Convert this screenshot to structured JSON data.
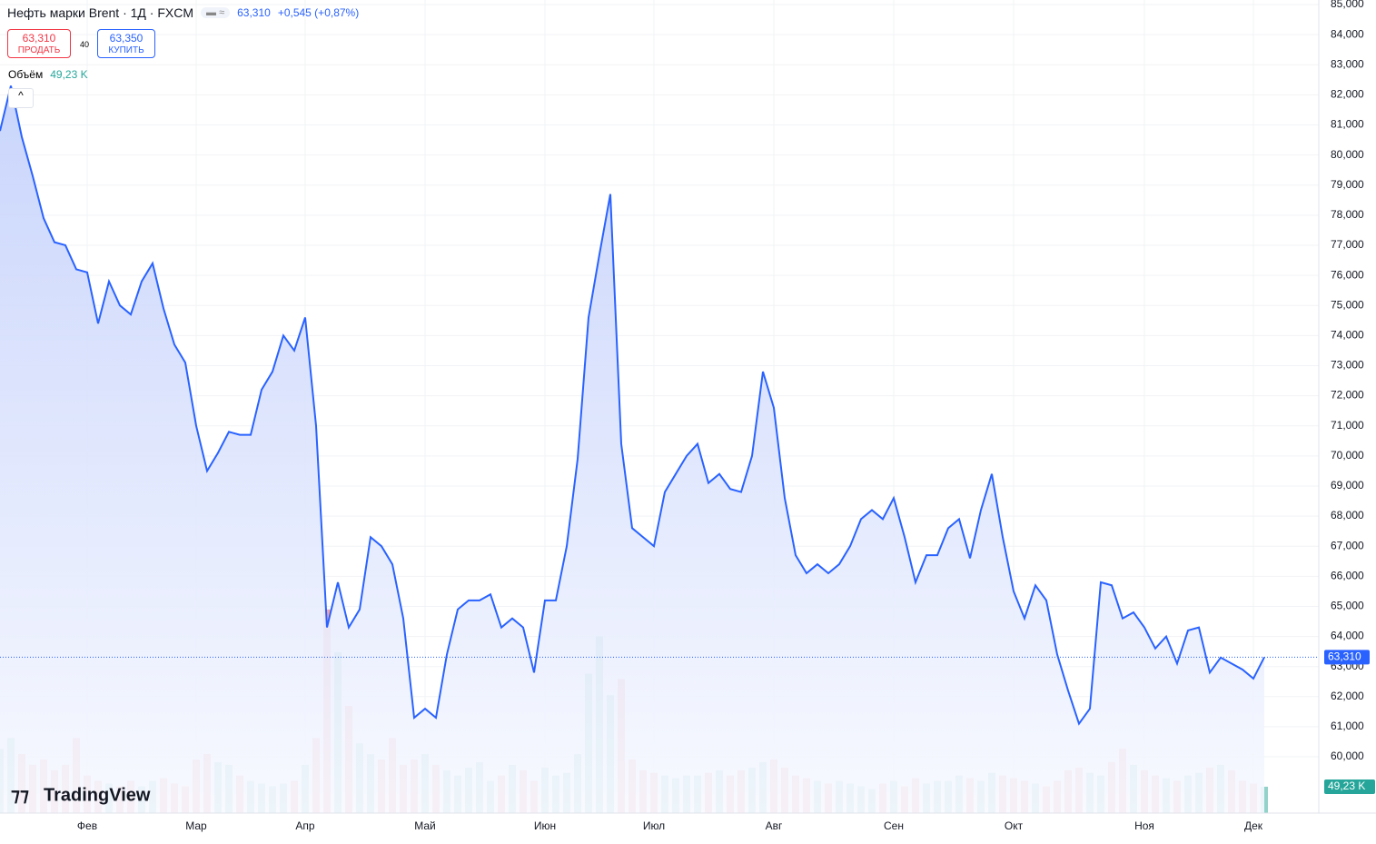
{
  "chart_data": {
    "type": "line",
    "title": "Нефть марки Brent · 1Д · FXCM",
    "last_price": "63,310",
    "change": "+0,545 (+0,87%)",
    "sell_price": "63,310",
    "sell_label": "ПРОДАТЬ",
    "spread": "40",
    "buy_price": "63,350",
    "buy_label": "КУПИТЬ",
    "brand": "TradingView",
    "color": "#2962ff",
    "categories": [
      null,
      null,
      null,
      null,
      null,
      null,
      null,
      null,
      "Фев",
      null,
      null,
      null,
      null,
      null,
      null,
      null,
      null,
      null,
      "Мар",
      null,
      null,
      null,
      null,
      null,
      null,
      null,
      null,
      null,
      "Апр",
      null,
      null,
      null,
      null,
      null,
      null,
      null,
      null,
      null,
      null,
      "Май",
      null,
      null,
      null,
      null,
      null,
      null,
      null,
      null,
      null,
      null,
      "Июн",
      null,
      null,
      null,
      null,
      null,
      null,
      null,
      null,
      null,
      "Июл",
      null,
      null,
      null,
      null,
      null,
      null,
      null,
      null,
      null,
      null,
      "Авг",
      null,
      null,
      null,
      null,
      null,
      null,
      null,
      null,
      null,
      null,
      "Сен",
      null,
      null,
      null,
      null,
      null,
      null,
      null,
      null,
      null,
      null,
      "Окт",
      null,
      null,
      null,
      null,
      null,
      null,
      null,
      null,
      null,
      null,
      null,
      "Ноя",
      null,
      null,
      null,
      null,
      null,
      null,
      null,
      null,
      null,
      "Дек",
      null
    ],
    "values": [
      80.8,
      82.3,
      80.6,
      79.3,
      77.9,
      77.1,
      77.0,
      76.2,
      76.1,
      74.4,
      75.8,
      75.0,
      74.7,
      75.8,
      76.4,
      74.9,
      73.7,
      73.1,
      71.0,
      69.5,
      70.1,
      70.8,
      70.7,
      70.7,
      72.2,
      72.8,
      74.0,
      73.5,
      74.6,
      71.0,
      64.3,
      65.8,
      64.3,
      64.9,
      67.3,
      67.0,
      66.4,
      64.6,
      61.3,
      61.6,
      61.3,
      63.4,
      64.9,
      65.2,
      65.2,
      65.4,
      64.3,
      64.6,
      64.3,
      62.8,
      65.2,
      65.2,
      67.0,
      69.9,
      74.6,
      76.7,
      78.7,
      70.4,
      67.6,
      67.3,
      67.0,
      68.8,
      69.4,
      70.0,
      70.4,
      69.1,
      69.4,
      68.9,
      68.8,
      70.0,
      72.8,
      71.6,
      68.6,
      66.7,
      66.1,
      66.4,
      66.1,
      66.4,
      67.0,
      67.9,
      68.2,
      67.9,
      68.6,
      67.3,
      65.8,
      66.7,
      66.7,
      67.6,
      67.9,
      66.6,
      68.2,
      69.4,
      67.3,
      65.5,
      64.6,
      65.7,
      65.2,
      63.4,
      62.2,
      61.1,
      61.6,
      65.8,
      65.7,
      64.6,
      64.8,
      64.3,
      63.6,
      64.0,
      63.1,
      64.2,
      64.3,
      62.8,
      63.3,
      63.1,
      62.9,
      62.6,
      63.31
    ],
    "ylim": [
      58.13,
      85.15
    ],
    "yticks": [
      {
        "value": 85,
        "label": "85,000"
      },
      {
        "value": 84,
        "label": "84,000"
      },
      {
        "value": 83,
        "label": "83,000"
      },
      {
        "value": 82,
        "label": "82,000"
      },
      {
        "value": 81,
        "label": "81,000"
      },
      {
        "value": 80,
        "label": "80,000"
      },
      {
        "value": 79,
        "label": "79,000"
      },
      {
        "value": 78,
        "label": "78,000"
      },
      {
        "value": 77,
        "label": "77,000"
      },
      {
        "value": 76,
        "label": "76,000"
      },
      {
        "value": 75,
        "label": "75,000"
      },
      {
        "value": 74,
        "label": "74,000"
      },
      {
        "value": 73,
        "label": "73,000"
      },
      {
        "value": 72,
        "label": "72,000"
      },
      {
        "value": 71,
        "label": "71,000"
      },
      {
        "value": 70,
        "label": "70,000"
      },
      {
        "value": 69,
        "label": "69,000"
      },
      {
        "value": 68,
        "label": "68,000"
      },
      {
        "value": 67,
        "label": "67,000"
      },
      {
        "value": 66,
        "label": "66,000"
      },
      {
        "value": 65,
        "label": "65,000"
      },
      {
        "value": 64,
        "label": "64,000"
      },
      {
        "value": 63,
        "label": "63,000"
      },
      {
        "value": 62,
        "label": "62,000"
      },
      {
        "value": 61,
        "label": "61,000"
      },
      {
        "value": 60,
        "label": "60,000"
      }
    ],
    "grid": true,
    "volume": {
      "name": "Объём",
      "value_label": "49,23 K",
      "up_color": "#92d2c9",
      "down_color": "#f4a3a3",
      "label_color": "#26a69a",
      "ylim": [
        0,
        1517
      ],
      "values": [
        120,
        140,
        110,
        90,
        100,
        80,
        90,
        140,
        70,
        60,
        55,
        50,
        60,
        50,
        60,
        65,
        55,
        50,
        100,
        110,
        95,
        90,
        70,
        60,
        55,
        50,
        55,
        60,
        90,
        140,
        380,
        300,
        200,
        130,
        110,
        100,
        140,
        90,
        100,
        110,
        90,
        80,
        70,
        85,
        95,
        60,
        70,
        90,
        80,
        60,
        85,
        70,
        75,
        110,
        260,
        330,
        220,
        250,
        100,
        80,
        75,
        70,
        65,
        70,
        70,
        75,
        80,
        70,
        80,
        85,
        95,
        100,
        85,
        70,
        65,
        60,
        55,
        60,
        55,
        50,
        45,
        55,
        60,
        50,
        65,
        55,
        60,
        60,
        70,
        65,
        60,
        75,
        70,
        65,
        60,
        55,
        50,
        60,
        80,
        85,
        75,
        70,
        95,
        120,
        90,
        80,
        70,
        65,
        60,
        70,
        75,
        85,
        90,
        80,
        60,
        55,
        49.23
      ]
    }
  }
}
